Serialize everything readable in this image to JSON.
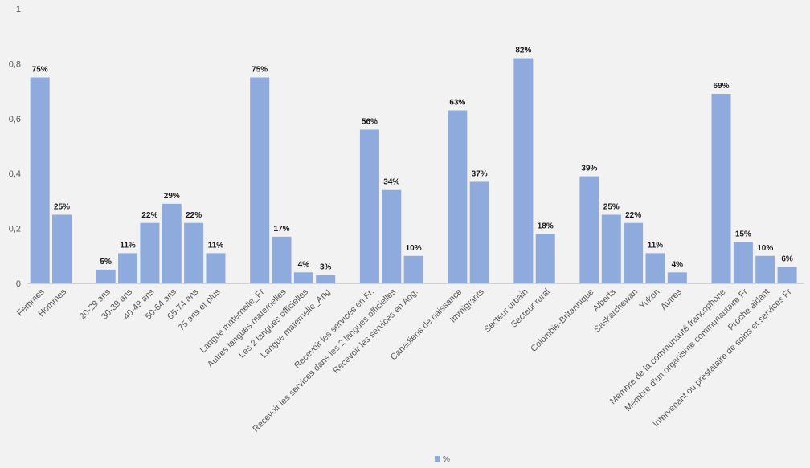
{
  "chart_data": {
    "type": "bar",
    "title": "",
    "xlabel": "",
    "ylabel": "",
    "ylim": [
      0,
      1
    ],
    "yticks": [
      0,
      0.2,
      0.4,
      0.6,
      0.8,
      1
    ],
    "ytick_labels": [
      "0",
      "0,2",
      "0,4",
      "0,6",
      "0,8",
      "1"
    ],
    "grid": false,
    "legend_position": "bottom",
    "bar_color": "#8faadc",
    "groups": [
      {
        "categories": [
          "Femmes",
          "Hommes"
        ],
        "values": [
          0.75,
          0.25
        ],
        "labels": [
          "75%",
          "25%"
        ]
      },
      {
        "categories": [
          "20-29 ans",
          "30-39 ans",
          "40-49 ans",
          "50-64 ans",
          "65-74 ans",
          "75 ans et plus"
        ],
        "values": [
          0.05,
          0.11,
          0.22,
          0.29,
          0.22,
          0.11
        ],
        "labels": [
          "5%",
          "11%",
          "22%",
          "29%",
          "22%",
          "11%"
        ]
      },
      {
        "categories": [
          "Langue maternelle_Fr",
          "Autres langues maternelles",
          "Les 2 langues officielles",
          "Langue maternelle_Ang"
        ],
        "values": [
          0.75,
          0.17,
          0.04,
          0.03
        ],
        "labels": [
          "75%",
          "17%",
          "4%",
          "3%"
        ]
      },
      {
        "categories": [
          "Recevoir les services en Fr.",
          "Recevoir les services dans les 2 langues officielles",
          "Recevoir les services en Ang."
        ],
        "values": [
          0.56,
          0.34,
          0.1
        ],
        "labels": [
          "56%",
          "34%",
          "10%"
        ]
      },
      {
        "categories": [
          "Canadiens de naissance",
          "Immigrants"
        ],
        "values": [
          0.63,
          0.37
        ],
        "labels": [
          "63%",
          "37%"
        ]
      },
      {
        "categories": [
          "Secteur urbain",
          "Secteur rural"
        ],
        "values": [
          0.82,
          0.18
        ],
        "labels": [
          "82%",
          "18%"
        ]
      },
      {
        "categories": [
          "Colombie-Britannique",
          "Alberta",
          "Saskatchewan",
          "Yukon",
          "Autres"
        ],
        "values": [
          0.39,
          0.25,
          0.22,
          0.11,
          0.04
        ],
        "labels": [
          "39%",
          "25%",
          "22%",
          "11%",
          "4%"
        ]
      },
      {
        "categories": [
          "Membre de la communauté francophone",
          "Membre d'un organisme communautaire Fr",
          "Proche aidant",
          "Intervenant ou prestataire de soins et services Fr"
        ],
        "values": [
          0.69,
          0.15,
          0.1,
          0.06
        ],
        "labels": [
          "69%",
          "15%",
          "10%",
          "6%"
        ]
      }
    ],
    "series": [
      {
        "name": "%"
      }
    ]
  }
}
